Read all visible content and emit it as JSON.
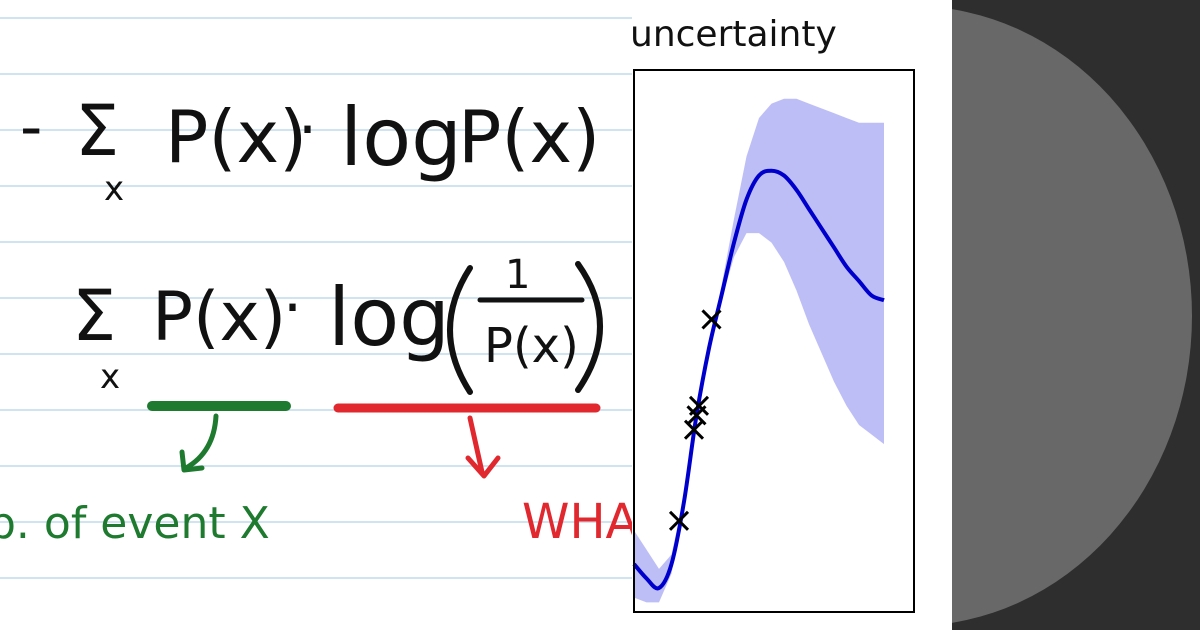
{
  "notebook": {
    "formula_1": {
      "sign": "-",
      "sum": "Σ",
      "sum_index": "x",
      "p1": "P(x)",
      "dot": "·",
      "log": "log",
      "p2": "P(x)"
    },
    "formula_2": {
      "sum": "Σ",
      "sum_index": "x",
      "p1": "P(x)",
      "dot": "·",
      "log": "log",
      "numerator": "1",
      "denominator": "P(x)"
    },
    "annotation_green": "b. of event X",
    "annotation_red": "WHA",
    "colors": {
      "ink": "#111111",
      "green": "#1e7a2e",
      "red": "#e0282e",
      "rule": "#cfe3f1"
    }
  },
  "chart": {
    "title": "uncertainty",
    "colors": {
      "line": "#0000cc",
      "band": "#b3b3f5",
      "frame": "#000000",
      "marker": "#000000"
    }
  },
  "chart_data": {
    "type": "line",
    "title": "uncertainty",
    "xlabel": "",
    "ylabel": "",
    "grid": false,
    "x": [
      0,
      0.05,
      0.1,
      0.15,
      0.2,
      0.25,
      0.3,
      0.35,
      0.4,
      0.45,
      0.5,
      0.55,
      0.6,
      0.65,
      0.7,
      0.75,
      0.8,
      0.85,
      0.9,
      0.95,
      1.0
    ],
    "series": [
      {
        "values": [
          0.05,
          0.02,
          0.0,
          0.05,
          0.18,
          0.36,
          0.5,
          0.61,
          0.72,
          0.81,
          0.86,
          0.87,
          0.86,
          0.83,
          0.79,
          0.75,
          0.71,
          0.67,
          0.64,
          0.61,
          0.6
        ]
      }
    ],
    "band": {
      "lower": [
        -0.02,
        -0.03,
        -0.03,
        0.03,
        0.17,
        0.35,
        0.49,
        0.6,
        0.69,
        0.74,
        0.74,
        0.72,
        0.68,
        0.62,
        0.55,
        0.49,
        0.43,
        0.38,
        0.34,
        0.32,
        0.3
      ],
      "upper": [
        0.12,
        0.08,
        0.04,
        0.07,
        0.19,
        0.37,
        0.51,
        0.63,
        0.77,
        0.9,
        0.98,
        1.01,
        1.02,
        1.02,
        1.01,
        1.0,
        0.99,
        0.98,
        0.97,
        0.97,
        0.97
      ]
    },
    "observations": [
      {
        "x": 0.18,
        "y": 0.14
      },
      {
        "x": 0.24,
        "y": 0.33
      },
      {
        "x": 0.25,
        "y": 0.36
      },
      {
        "x": 0.26,
        "y": 0.38
      },
      {
        "x": 0.31,
        "y": 0.56
      }
    ],
    "xlim": [
      0,
      1.0
    ],
    "ylim": [
      -0.05,
      1.08
    ]
  }
}
